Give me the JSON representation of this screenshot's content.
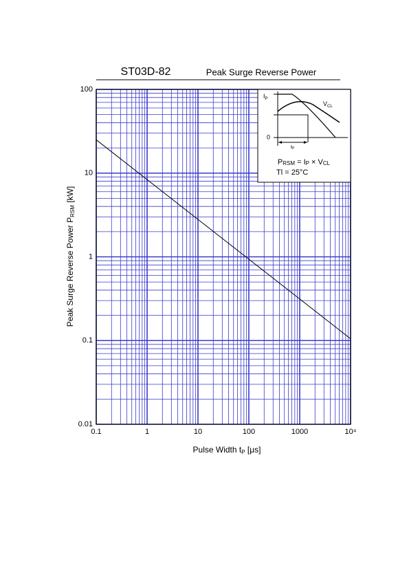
{
  "chart_data": {
    "type": "line",
    "title": "ST03D-82",
    "subtitle": "Peak Surge Reverse Power",
    "y_label": [
      "Peak Surge Reverse Power  P",
      "RSM",
      "  [kW]"
    ],
    "x_label": [
      "Pulse Width  t",
      "P",
      "  [μs]"
    ],
    "x": [
      0.1,
      10000
    ],
    "series": [
      {
        "color": "#000000",
        "values": [
          25,
          0.105
        ]
      }
    ],
    "log_x": true,
    "log_y": true,
    "xlim": [
      0.1,
      10000
    ],
    "ylim": [
      0.01,
      100
    ],
    "xticks": [
      0.1,
      1,
      10,
      100,
      1000,
      {
        "value": 10000,
        "label": "10⁴"
      }
    ],
    "yticks": [
      0.01,
      0.1,
      1,
      10,
      100
    ],
    "grid": true,
    "minor_grid": true,
    "grid_color": "#3a3acc",
    "inset": {
      "ip": [
        "I",
        "P"
      ],
      "vcl": [
        "V",
        "CL"
      ],
      "zero": "0",
      "tp": [
        "t",
        "P"
      ],
      "formula": [
        "P",
        "RSM",
        " = I",
        "P",
        " × V",
        "CL"
      ],
      "temp": "Tl = 25°C"
    }
  }
}
